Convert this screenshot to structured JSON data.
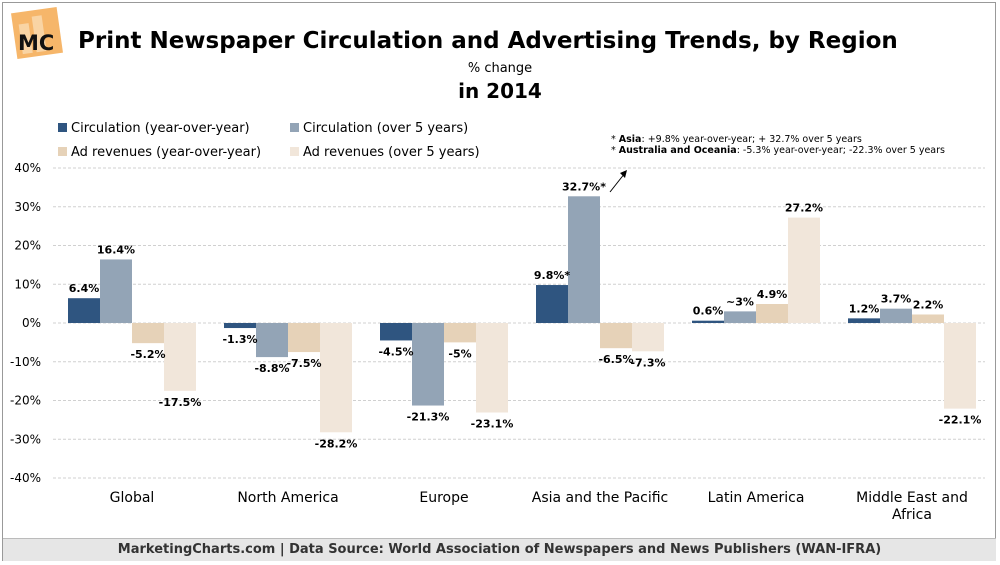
{
  "logo": {
    "text": "MC"
  },
  "header": {
    "title": "Print Newspaper Circulation and Advertising Trends, by Region",
    "subtitle": "% change",
    "subtitle2": "in 2014"
  },
  "notes": [
    {
      "bold": "Asia",
      "text": ": +9.8% year-over-year; + 32.7% over 5 years"
    },
    {
      "bold": "Australia and Oceania",
      "text": ": -5.3% year-over-year; -22.3% over 5 years"
    }
  ],
  "footer": "MarketingCharts.com | Data Source: World Association of Newspapers and News Publishers (WAN-IFRA)",
  "chart_data": {
    "type": "bar",
    "categories": [
      "Global",
      "North America",
      "Europe",
      "Asia and the Pacific",
      "Latin America",
      "Middle East and Africa"
    ],
    "series": [
      {
        "name": "Circulation (year-over-year)",
        "color": "#2f5580",
        "values": [
          6.4,
          -1.3,
          -4.5,
          9.8,
          0.6,
          1.2
        ],
        "labels": [
          "6.4%",
          "-1.3%",
          "-4.5%",
          "9.8%*",
          "0.6%",
          "1.2%"
        ]
      },
      {
        "name": "Circulation (over 5 years)",
        "color": "#93a4b6",
        "values": [
          16.4,
          -8.8,
          -21.3,
          32.7,
          3,
          3.7
        ],
        "labels": [
          "16.4%",
          "-8.8%",
          "-21.3%",
          "32.7%*",
          "~3%",
          "3.7%"
        ]
      },
      {
        "name": "Ad revenues (year-over-year)",
        "color": "#e6d2b8",
        "values": [
          -5.2,
          -7.5,
          -5,
          -6.5,
          4.9,
          2.2
        ],
        "labels": [
          "-5.2%",
          "-7.5%",
          "-5%",
          "-6.5%",
          "4.9%",
          "2.2%"
        ]
      },
      {
        "name": "Ad revenues (over 5 years)",
        "color": "#f1e6da",
        "values": [
          -17.5,
          -28.2,
          -23.1,
          -7.3,
          27.2,
          -22.1
        ],
        "labels": [
          "-17.5%",
          "-28.2%",
          "-23.1%",
          "-7.3%",
          "27.2%",
          "-22.1%"
        ]
      }
    ],
    "yticks": [
      "40%",
      "30%",
      "20%",
      "10%",
      "0%",
      "-10%",
      "-20%",
      "-30%",
      "-40%"
    ],
    "ylim": [
      -40,
      40
    ],
    "grid": true,
    "legend": "top-left"
  }
}
